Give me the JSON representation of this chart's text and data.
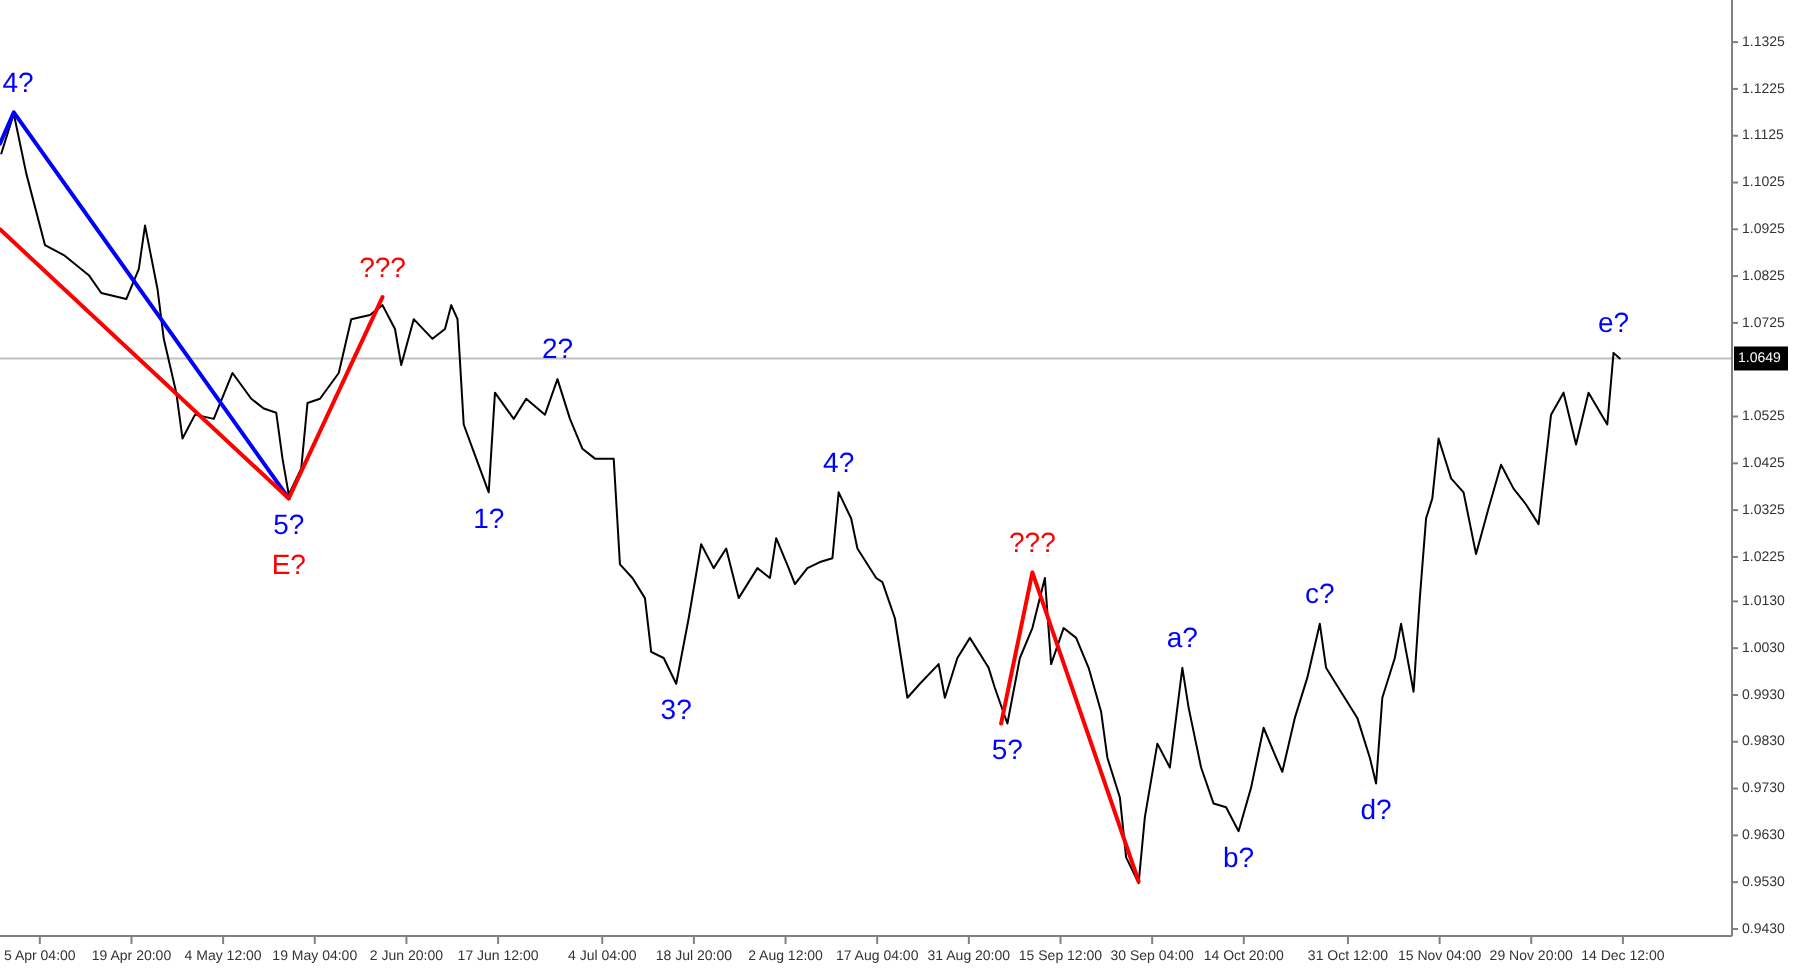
{
  "chart_data": {
    "type": "line",
    "xlim": [
      "--03-29T19:00",
      "--12-31T23:00"
    ],
    "ylim": [
      0.9415,
      1.1415
    ],
    "xticks": [
      {
        "value": "--04-05T04:00",
        "label": "5 Apr 04:00"
      },
      {
        "value": "--04-19T20:00",
        "label": "19 Apr 20:00"
      },
      {
        "value": "--05-04T12:00",
        "label": "4 May 12:00"
      },
      {
        "value": "--05-19T04:00",
        "label": "19 May 04:00"
      },
      {
        "value": "--06-02T20:00",
        "label": "2 Jun 20:00"
      },
      {
        "value": "--06-17T12:00",
        "label": "17 Jun 12:00"
      },
      {
        "value": "--07-04T04:00",
        "label": "4 Jul 04:00"
      },
      {
        "value": "--07-18T20:00",
        "label": "18 Jul 20:00"
      },
      {
        "value": "--08-02T12:00",
        "label": "2 Aug 12:00"
      },
      {
        "value": "--08-17T04:00",
        "label": "17 Aug 04:00"
      },
      {
        "value": "--08-31T20:00",
        "label": "31 Aug 20:00"
      },
      {
        "value": "--09-15T12:00",
        "label": "15 Sep 12:00"
      },
      {
        "value": "--09-30T04:00",
        "label": "30 Sep 04:00"
      },
      {
        "value": "--10-14T20:00",
        "label": "14 Oct 20:00"
      },
      {
        "value": "--10-31T12:00",
        "label": "31 Oct 12:00"
      },
      {
        "value": "--11-15T04:00",
        "label": "15 Nov 04:00"
      },
      {
        "value": "--11-29T20:00",
        "label": "29 Nov 20:00"
      },
      {
        "value": "--12-14T12:00",
        "label": "14 Dec 12:00"
      }
    ],
    "yticks": [
      1.1325,
      1.1225,
      1.1125,
      1.1025,
      1.0925,
      1.0825,
      1.0725,
      1.0525,
      1.0425,
      1.0325,
      1.0225,
      {
        "value": 1.013,
        "label": "1.0130"
      },
      {
        "value": 1.003,
        "label": "1.0030"
      },
      {
        "value": 0.993,
        "label": "0.9930"
      },
      {
        "value": 0.983,
        "label": "0.9830"
      },
      {
        "value": 0.973,
        "label": "0.9730"
      },
      {
        "value": 0.963,
        "label": "0.9630"
      },
      {
        "value": 0.953,
        "label": "0.9530"
      },
      {
        "value": 0.943,
        "label": "0.9430"
      }
    ],
    "series": [
      {
        "color": "#000000",
        "x": [
          "--03-30",
          "--04-01",
          "--04-03",
          "--04-06",
          "--04-09",
          "--04-13",
          "--04-15",
          "--04-19",
          "--04-21",
          "--04-22",
          "--04-24",
          "--04-25",
          "--04-27",
          "--04-28",
          "--04-30",
          "--05-03",
          "--05-06",
          "--05-09",
          "--05-11",
          "--05-13",
          "--05-14",
          "--05-15",
          "--05-17",
          "--05-18",
          "--05-20",
          "--05-23",
          "--05-25",
          "--05-28",
          "--05-30",
          "--06-01",
          "--06-02",
          "--06-04",
          "--06-07",
          "--06-09",
          "--06-10",
          "--06-11",
          "--06-12",
          "--06-14",
          "--06-16",
          "--06-17",
          "--06-20",
          "--06-22",
          "--06-25",
          "--06-27",
          "--06-29",
          "--07-01",
          "--07-03",
          "--07-06",
          "--07-07",
          "--07-09",
          "--07-11",
          "--07-12",
          "--07-14",
          "--07-16",
          "--07-18",
          "--07-20",
          "--07-22",
          "--07-24",
          "--07-26",
          "--07-29",
          "--07-31",
          "--08-01",
          "--08-03",
          "--08-04",
          "--08-06",
          "--08-08",
          "--08-10",
          "--08-11",
          "--08-13",
          "--08-14",
          "--08-17",
          "--08-18",
          "--08-20",
          "--08-22",
          "--08-24",
          "--08-27",
          "--08-28",
          "--08-30",
          "--09-01",
          "--09-04",
          "--09-05",
          "--09-07",
          "--09-09",
          "--09-11",
          "--09-13",
          "--09-14",
          "--09-16",
          "--09-18",
          "--09-20",
          "--09-22",
          "--09-23",
          "--09-25",
          "--09-26",
          "--09-28",
          "--09-29",
          "--10-01",
          "--10-03",
          "--10-05",
          "--10-06",
          "--10-08",
          "--10-10",
          "--10-12",
          "--10-14",
          "--10-16",
          "--10-18",
          "--10-20",
          "--10-21",
          "--10-23",
          "--10-25",
          "--10-27",
          "--10-28",
          "--10-30",
          "--11-02",
          "--11-04",
          "--11-05",
          "--11-06",
          "--11-08",
          "--11-09",
          "--11-11",
          "--11-12",
          "--11-13",
          "--11-14",
          "--11-15",
          "--11-17",
          "--11-19",
          "--11-21",
          "--11-23",
          "--11-25",
          "--11-27",
          "--11-29",
          "--12-01",
          "--12-03",
          "--12-05",
          "--12-07",
          "--12-09",
          "--12-12",
          "--12-13",
          "--12-14"
        ],
        "values": [
          1.1087,
          1.1172,
          1.1044,
          1.0891,
          1.087,
          1.0827,
          1.0789,
          1.0776,
          1.084,
          1.0933,
          1.0797,
          1.0691,
          1.0576,
          1.0478,
          1.0529,
          1.052,
          1.0618,
          1.0563,
          1.0542,
          1.0533,
          1.0435,
          1.0358,
          1.0414,
          1.0554,
          1.0563,
          1.0618,
          1.0733,
          1.0742,
          1.0763,
          1.0712,
          1.0635,
          1.0733,
          1.0691,
          1.0712,
          1.0763,
          1.0733,
          1.0508,
          1.0435,
          1.0363,
          1.0576,
          1.052,
          1.0563,
          1.0529,
          1.0605,
          1.052,
          1.0456,
          1.0435,
          1.0435,
          1.0209,
          1.018,
          1.0137,
          1.0022,
          1.0009,
          0.9954,
          1.0094,
          1.0252,
          1.0201,
          1.0243,
          1.0137,
          1.0201,
          1.018,
          1.0265,
          1.0201,
          1.0167,
          1.0201,
          1.0214,
          1.0222,
          1.0363,
          1.0307,
          1.0243,
          1.018,
          1.0171,
          1.0094,
          0.9924,
          0.9954,
          0.9996,
          0.9924,
          1.0009,
          1.0052,
          0.9988,
          0.9945,
          0.9869,
          1.0009,
          1.0073,
          1.018,
          0.9996,
          1.0073,
          1.0052,
          0.9988,
          0.9894,
          0.9796,
          0.9711,
          0.9583,
          0.9528,
          0.9669,
          0.9826,
          0.9775,
          0.9988,
          0.9903,
          0.9775,
          0.9698,
          0.969,
          0.9639,
          0.9732,
          0.986,
          0.9796,
          0.9766,
          0.9881,
          0.9967,
          1.0082,
          0.9988,
          0.9945,
          0.9881,
          0.9796,
          0.9741,
          0.9924,
          1.0009,
          1.0082,
          0.9937,
          1.0137,
          1.0307,
          1.035,
          1.0478,
          1.0393,
          1.0363,
          1.0231,
          1.0329,
          1.0422,
          1.0371,
          1.0337,
          1.0295,
          1.0529,
          1.0576,
          1.0465,
          1.0576,
          1.0508,
          1.0661,
          1.0649
        ]
      },
      {
        "color": "#0000ff",
        "x": [
          "--03-29T19:00",
          "--04-01",
          "--05-15"
        ],
        "values": [
          1.1108,
          1.1175,
          1.035
        ]
      },
      {
        "color": "#ff0000",
        "x": [
          "--03-29T19:00",
          "--05-15",
          "--05-30"
        ],
        "values": [
          1.0925,
          1.035,
          1.078
        ]
      },
      {
        "color": "#ff0000",
        "x": [
          "--09-06",
          "--09-11",
          "--09-28"
        ],
        "values": [
          0.9869,
          1.0192,
          0.9532
        ]
      }
    ],
    "ref_lines": [
      {
        "axis": "y",
        "value": 1.0649,
        "label": "1.0649",
        "color": "#c0c0c0"
      }
    ],
    "annotations": [
      {
        "text": "4?",
        "x": "--04-01",
        "y": 1.1175
      },
      {
        "text": "???",
        "x": "--05-30",
        "y": 1.078
      },
      {
        "text": "5?",
        "x": "--05-15",
        "y": 1.035
      },
      {
        "text": "E?",
        "x": "--05-15",
        "y": 1.035
      },
      {
        "text": "1?",
        "x": "--06-16",
        "y": 1.0363
      },
      {
        "text": "2?",
        "x": "--06-27",
        "y": 1.0605
      },
      {
        "text": "3?",
        "x": "--07-16",
        "y": 0.9954
      },
      {
        "text": "4?",
        "x": "--08-11",
        "y": 1.0363
      },
      {
        "text": "5?",
        "x": "--09-07",
        "y": 0.9869
      },
      {
        "text": "???",
        "x": "--09-11",
        "y": 1.0192
      },
      {
        "text": "a?",
        "x": "--10-05",
        "y": 0.9988
      },
      {
        "text": "b?",
        "x": "--10-14",
        "y": 0.9639
      },
      {
        "text": "c?",
        "x": "--10-27",
        "y": 1.0082
      },
      {
        "text": "d?",
        "x": "--11-05",
        "y": 0.9741
      },
      {
        "text": "e?",
        "x": "--12-13",
        "y": 1.0661
      }
    ]
  }
}
